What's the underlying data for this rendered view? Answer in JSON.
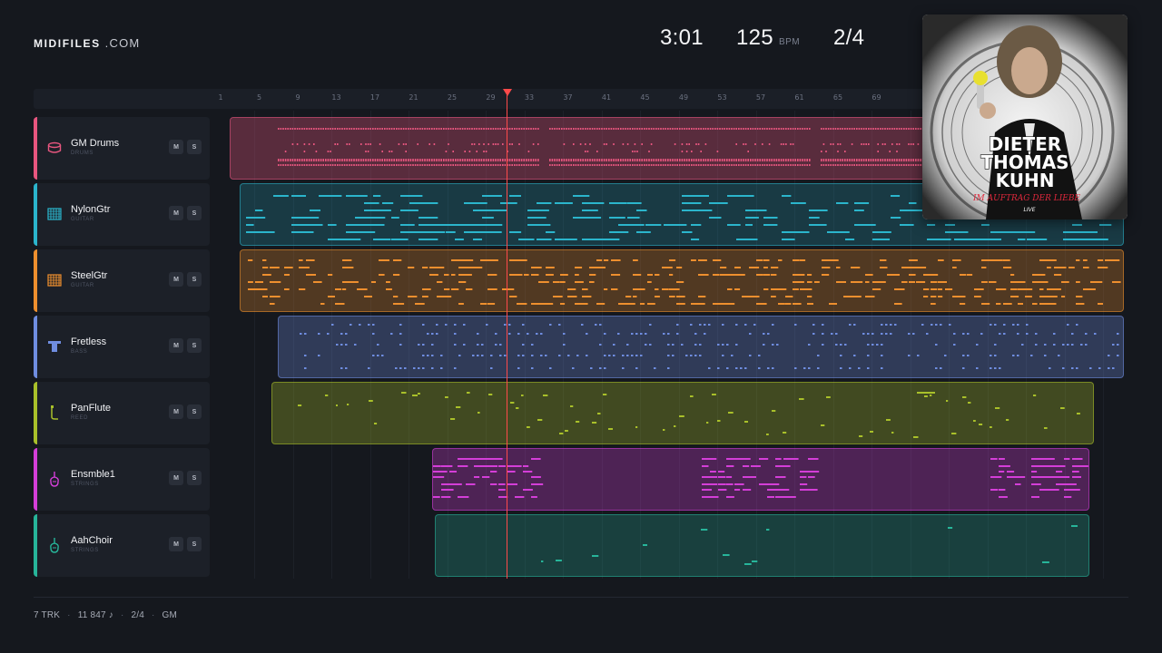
{
  "brand": {
    "bold": "MIDIFILES",
    "light": ".COM"
  },
  "transport": {
    "time": "3:01",
    "bpm": "125",
    "bpm_unit": "BPM",
    "meter": "2/4"
  },
  "ruler_ticks": [
    "1",
    "5",
    "9",
    "13",
    "17",
    "21",
    "25",
    "29",
    "33",
    "37",
    "41",
    "45",
    "49",
    "53",
    "57",
    "61",
    "65",
    "69"
  ],
  "tracks": [
    {
      "name": "GM Drums",
      "category": "DRUMS",
      "color": "#e8567f",
      "icon": "drum-icon",
      "mute": "M",
      "solo": "S"
    },
    {
      "name": "NylonGtr",
      "category": "GUITAR",
      "color": "#2bb5cc",
      "icon": "guitar-fretboard-icon",
      "mute": "M",
      "solo": "S"
    },
    {
      "name": "SteelGtr",
      "category": "GUITAR",
      "color": "#ee8f2e",
      "icon": "guitar-fretboard-icon",
      "mute": "M",
      "solo": "S"
    },
    {
      "name": "Fretless",
      "category": "BASS",
      "color": "#6f8de0",
      "icon": "bass-icon",
      "mute": "M",
      "solo": "S"
    },
    {
      "name": "PanFlute",
      "category": "REED",
      "color": "#a9c02a",
      "icon": "flute-icon",
      "mute": "M",
      "solo": "S"
    },
    {
      "name": "Ensmble1",
      "category": "STRINGS",
      "color": "#d43ed8",
      "icon": "violin-icon",
      "mute": "M",
      "solo": "S"
    },
    {
      "name": "AahChoir",
      "category": "STRINGS",
      "color": "#27b59a",
      "icon": "violin-icon",
      "mute": "M",
      "solo": "S"
    }
  ],
  "footer": {
    "tracks": "7 TRK",
    "notes": "11 847 ♪",
    "meter": "2/4",
    "standard": "GM",
    "separator": "·"
  },
  "cover": {
    "line1": "DIETER",
    "line2": "THOMAS",
    "line3": "KUHN",
    "subtitle": "IM AUFTRAG DER LIEBE",
    "tag": "LIVE"
  }
}
